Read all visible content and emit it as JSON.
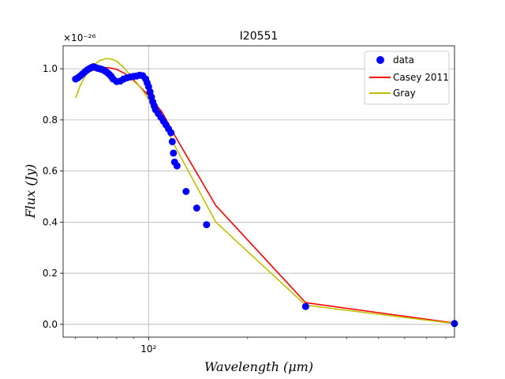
{
  "chart_data": {
    "type": "line",
    "title": "I20551",
    "xlabel": "Wavelength (μm)",
    "ylabel": "Flux (Jy)",
    "y_scale_exponent": "×10⁻²⁶",
    "x_scale": "log",
    "xlim": [
      55,
      850
    ],
    "ylim": [
      -0.05,
      1.09
    ],
    "grid": true,
    "legend_placement": "top-right",
    "x_tick_labels": [
      {
        "value": 100,
        "label": "10²"
      }
    ],
    "y_ticks": [
      {
        "value": 0.0,
        "label": "0.0"
      },
      {
        "value": 0.2,
        "label": "0.2"
      },
      {
        "value": 0.4,
        "label": "0.4"
      },
      {
        "value": 0.6,
        "label": "0.6"
      },
      {
        "value": 0.8,
        "label": "0.8"
      },
      {
        "value": 1.0,
        "label": "1.0"
      }
    ],
    "series": [
      {
        "name": "data",
        "kind": "scatter",
        "color": "#0000ff",
        "x": [
          60,
          61,
          62,
          63,
          64,
          65,
          66,
          67,
          68,
          69,
          70,
          71,
          72,
          73,
          74,
          75,
          76,
          77,
          78,
          80,
          82,
          84,
          86,
          88,
          90,
          92,
          94,
          96,
          98,
          99,
          100,
          101,
          102,
          103,
          104,
          105,
          107,
          109,
          111,
          113,
          115,
          117,
          118,
          119,
          120,
          122,
          130,
          140,
          150,
          300,
          850
        ],
        "y": [
          0.96,
          0.965,
          0.972,
          0.98,
          0.988,
          0.995,
          1.0,
          1.005,
          1.008,
          1.005,
          1.002,
          1.0,
          0.998,
          0.995,
          0.99,
          0.985,
          0.978,
          0.97,
          0.96,
          0.95,
          0.952,
          0.96,
          0.965,
          0.968,
          0.97,
          0.972,
          0.975,
          0.973,
          0.96,
          0.945,
          0.93,
          0.91,
          0.89,
          0.87,
          0.855,
          0.84,
          0.825,
          0.81,
          0.795,
          0.78,
          0.765,
          0.75,
          0.715,
          0.67,
          0.635,
          0.62,
          0.52,
          0.455,
          0.39,
          0.07,
          0.003
        ]
      },
      {
        "name": "Casey 2011",
        "kind": "line",
        "color": "#ff0000",
        "x": [
          60,
          65,
          70,
          75,
          80,
          85,
          90,
          95,
          100,
          110,
          120,
          160,
          300,
          850
        ],
        "y": [
          0.96,
          0.985,
          1.002,
          1.005,
          0.998,
          0.98,
          0.955,
          0.925,
          0.895,
          0.83,
          0.74,
          0.465,
          0.085,
          0.005
        ]
      },
      {
        "name": "Gray",
        "kind": "line",
        "color": "#bfbf00",
        "x": [
          60,
          62,
          65,
          68,
          71,
          74,
          77,
          80,
          84,
          88,
          92,
          96,
          100,
          110,
          120,
          160,
          300,
          850
        ],
        "y": [
          0.885,
          0.935,
          0.985,
          1.015,
          1.032,
          1.04,
          1.038,
          1.03,
          1.005,
          0.975,
          0.945,
          0.915,
          0.88,
          0.795,
          0.7,
          0.4,
          0.075,
          0.003
        ]
      }
    ]
  }
}
